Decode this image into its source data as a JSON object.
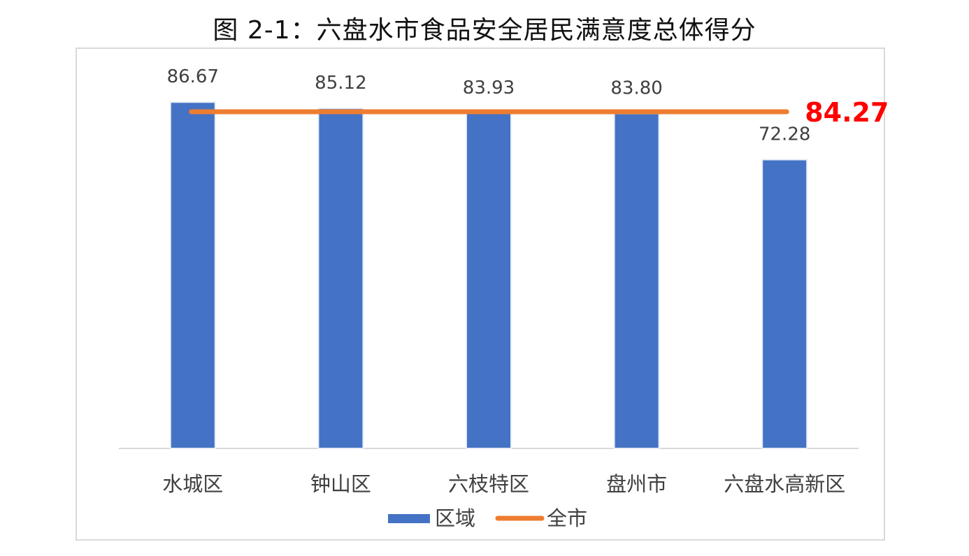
{
  "title": "图 2-1：六盘水市食品安全居民满意度总体得分",
  "chart_data": {
    "type": "bar",
    "categories": [
      "水城区",
      "钟山区",
      "六枝特区",
      "盘州市",
      "六盘水高新区"
    ],
    "series": [
      {
        "name": "区域",
        "type": "bar",
        "values": [
          86.67,
          85.12,
          83.93,
          83.8,
          72.28
        ],
        "labels": [
          "86.67",
          "85.12",
          "83.93",
          "83.80",
          "72.28"
        ],
        "color": "#4472c4"
      },
      {
        "name": "全市",
        "type": "line",
        "value": 84.27,
        "label": "84.27",
        "color": "#ed7d31",
        "label_color": "#ff0000"
      }
    ],
    "ylim": [
      0,
      100
    ],
    "grid": false,
    "legend": "bottom"
  }
}
